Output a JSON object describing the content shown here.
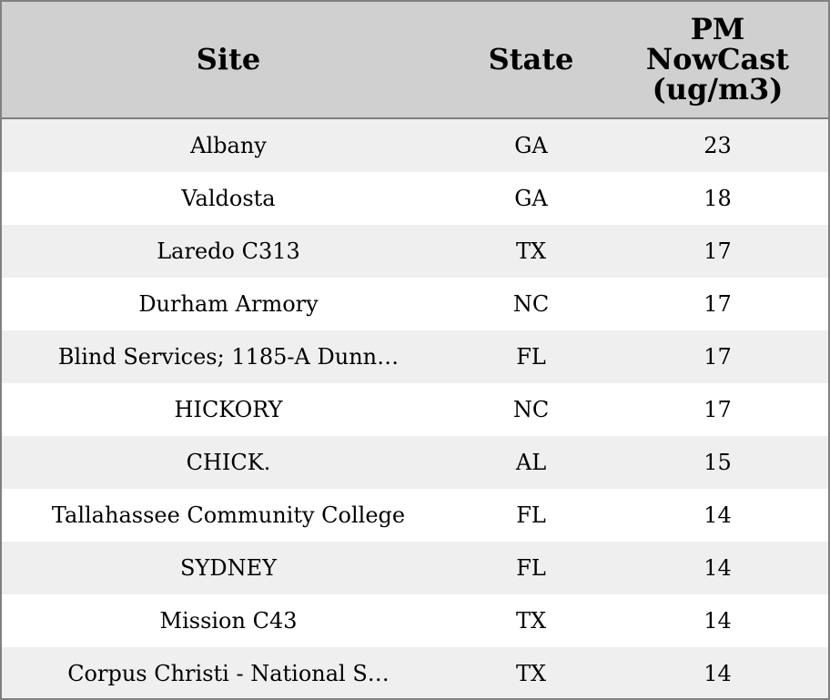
{
  "table": {
    "columns": [
      "Site",
      "State",
      "PM NowCast (ug/m3)"
    ],
    "rows": [
      [
        "Albany",
        "GA",
        23
      ],
      [
        "Valdosta",
        "GA",
        18
      ],
      [
        "Laredo C313",
        "TX",
        17
      ],
      [
        "Durham Armory",
        "NC",
        17
      ],
      [
        "Blind Services; 1185-A Dunn…",
        "FL",
        17
      ],
      [
        "HICKORY",
        "NC",
        17
      ],
      [
        "CHICK.",
        "AL",
        15
      ],
      [
        "Tallahassee Community College",
        "FL",
        14
      ],
      [
        "SYDNEY",
        "FL",
        14
      ],
      [
        "Mission C43",
        "TX",
        14
      ],
      [
        "Corpus Christi - National S…",
        "TX",
        14
      ]
    ]
  }
}
